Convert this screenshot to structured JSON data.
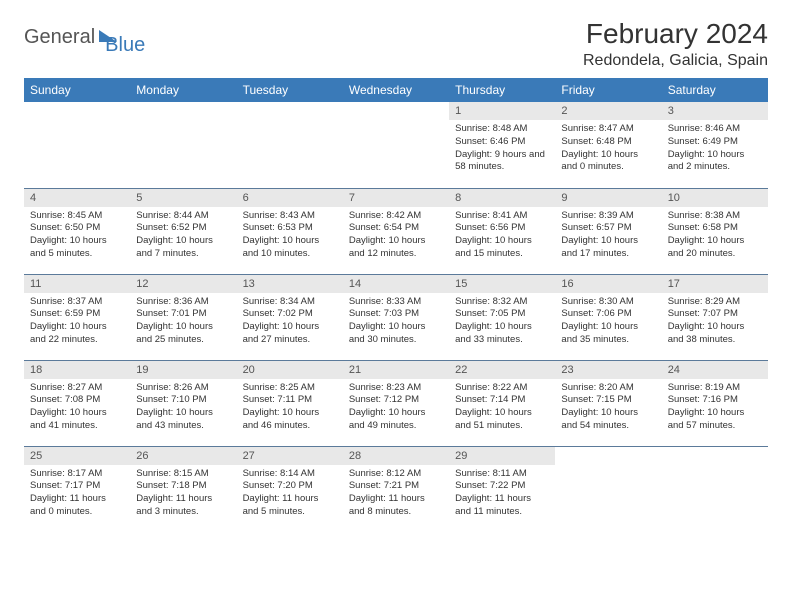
{
  "brand": {
    "general": "General",
    "blue": "Blue"
  },
  "header": {
    "month_title": "February 2024",
    "location": "Redondela, Galicia, Spain"
  },
  "colors": {
    "header_bg": "#3a7ab8",
    "daynum_bg": "#e8e8e8",
    "row_border": "#5b7a9a"
  },
  "weekdays": [
    "Sunday",
    "Monday",
    "Tuesday",
    "Wednesday",
    "Thursday",
    "Friday",
    "Saturday"
  ],
  "weeks": [
    [
      null,
      null,
      null,
      null,
      {
        "n": "1",
        "sr": "Sunrise: 8:48 AM",
        "ss": "Sunset: 6:46 PM",
        "dl": "Daylight: 9 hours and 58 minutes."
      },
      {
        "n": "2",
        "sr": "Sunrise: 8:47 AM",
        "ss": "Sunset: 6:48 PM",
        "dl": "Daylight: 10 hours and 0 minutes."
      },
      {
        "n": "3",
        "sr": "Sunrise: 8:46 AM",
        "ss": "Sunset: 6:49 PM",
        "dl": "Daylight: 10 hours and 2 minutes."
      }
    ],
    [
      {
        "n": "4",
        "sr": "Sunrise: 8:45 AM",
        "ss": "Sunset: 6:50 PM",
        "dl": "Daylight: 10 hours and 5 minutes."
      },
      {
        "n": "5",
        "sr": "Sunrise: 8:44 AM",
        "ss": "Sunset: 6:52 PM",
        "dl": "Daylight: 10 hours and 7 minutes."
      },
      {
        "n": "6",
        "sr": "Sunrise: 8:43 AM",
        "ss": "Sunset: 6:53 PM",
        "dl": "Daylight: 10 hours and 10 minutes."
      },
      {
        "n": "7",
        "sr": "Sunrise: 8:42 AM",
        "ss": "Sunset: 6:54 PM",
        "dl": "Daylight: 10 hours and 12 minutes."
      },
      {
        "n": "8",
        "sr": "Sunrise: 8:41 AM",
        "ss": "Sunset: 6:56 PM",
        "dl": "Daylight: 10 hours and 15 minutes."
      },
      {
        "n": "9",
        "sr": "Sunrise: 8:39 AM",
        "ss": "Sunset: 6:57 PM",
        "dl": "Daylight: 10 hours and 17 minutes."
      },
      {
        "n": "10",
        "sr": "Sunrise: 8:38 AM",
        "ss": "Sunset: 6:58 PM",
        "dl": "Daylight: 10 hours and 20 minutes."
      }
    ],
    [
      {
        "n": "11",
        "sr": "Sunrise: 8:37 AM",
        "ss": "Sunset: 6:59 PM",
        "dl": "Daylight: 10 hours and 22 minutes."
      },
      {
        "n": "12",
        "sr": "Sunrise: 8:36 AM",
        "ss": "Sunset: 7:01 PM",
        "dl": "Daylight: 10 hours and 25 minutes."
      },
      {
        "n": "13",
        "sr": "Sunrise: 8:34 AM",
        "ss": "Sunset: 7:02 PM",
        "dl": "Daylight: 10 hours and 27 minutes."
      },
      {
        "n": "14",
        "sr": "Sunrise: 8:33 AM",
        "ss": "Sunset: 7:03 PM",
        "dl": "Daylight: 10 hours and 30 minutes."
      },
      {
        "n": "15",
        "sr": "Sunrise: 8:32 AM",
        "ss": "Sunset: 7:05 PM",
        "dl": "Daylight: 10 hours and 33 minutes."
      },
      {
        "n": "16",
        "sr": "Sunrise: 8:30 AM",
        "ss": "Sunset: 7:06 PM",
        "dl": "Daylight: 10 hours and 35 minutes."
      },
      {
        "n": "17",
        "sr": "Sunrise: 8:29 AM",
        "ss": "Sunset: 7:07 PM",
        "dl": "Daylight: 10 hours and 38 minutes."
      }
    ],
    [
      {
        "n": "18",
        "sr": "Sunrise: 8:27 AM",
        "ss": "Sunset: 7:08 PM",
        "dl": "Daylight: 10 hours and 41 minutes."
      },
      {
        "n": "19",
        "sr": "Sunrise: 8:26 AM",
        "ss": "Sunset: 7:10 PM",
        "dl": "Daylight: 10 hours and 43 minutes."
      },
      {
        "n": "20",
        "sr": "Sunrise: 8:25 AM",
        "ss": "Sunset: 7:11 PM",
        "dl": "Daylight: 10 hours and 46 minutes."
      },
      {
        "n": "21",
        "sr": "Sunrise: 8:23 AM",
        "ss": "Sunset: 7:12 PM",
        "dl": "Daylight: 10 hours and 49 minutes."
      },
      {
        "n": "22",
        "sr": "Sunrise: 8:22 AM",
        "ss": "Sunset: 7:14 PM",
        "dl": "Daylight: 10 hours and 51 minutes."
      },
      {
        "n": "23",
        "sr": "Sunrise: 8:20 AM",
        "ss": "Sunset: 7:15 PM",
        "dl": "Daylight: 10 hours and 54 minutes."
      },
      {
        "n": "24",
        "sr": "Sunrise: 8:19 AM",
        "ss": "Sunset: 7:16 PM",
        "dl": "Daylight: 10 hours and 57 minutes."
      }
    ],
    [
      {
        "n": "25",
        "sr": "Sunrise: 8:17 AM",
        "ss": "Sunset: 7:17 PM",
        "dl": "Daylight: 11 hours and 0 minutes."
      },
      {
        "n": "26",
        "sr": "Sunrise: 8:15 AM",
        "ss": "Sunset: 7:18 PM",
        "dl": "Daylight: 11 hours and 3 minutes."
      },
      {
        "n": "27",
        "sr": "Sunrise: 8:14 AM",
        "ss": "Sunset: 7:20 PM",
        "dl": "Daylight: 11 hours and 5 minutes."
      },
      {
        "n": "28",
        "sr": "Sunrise: 8:12 AM",
        "ss": "Sunset: 7:21 PM",
        "dl": "Daylight: 11 hours and 8 minutes."
      },
      {
        "n": "29",
        "sr": "Sunrise: 8:11 AM",
        "ss": "Sunset: 7:22 PM",
        "dl": "Daylight: 11 hours and 11 minutes."
      },
      null,
      null
    ]
  ]
}
